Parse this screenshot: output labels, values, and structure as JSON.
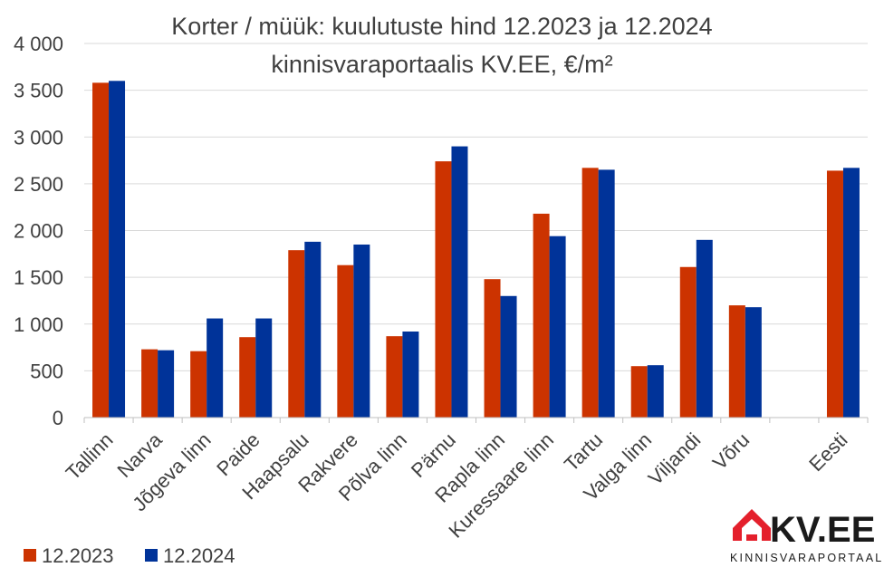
{
  "chart_data": {
    "type": "bar",
    "title_line1": "Korter / müük: kuulutuste hind 12.2023 ja 12.2024",
    "title_line2": "kinnisvaraportaalis KV.EE, €/m²",
    "categories": [
      "Tallinn",
      "Narva",
      "Jõgeva linn",
      "Paide",
      "Haapsalu",
      "Rakvere",
      "Põlva linn",
      "Pärnu",
      "Rapla linn",
      "Kuressaare linn",
      "Tartu",
      "Valga linn",
      "Viljandi",
      "Võru",
      "",
      "Eesti"
    ],
    "series": [
      {
        "name": "12.2023",
        "color": "#CC3300",
        "values": [
          3580,
          730,
          710,
          860,
          1790,
          1630,
          870,
          2740,
          1480,
          2180,
          2670,
          550,
          1610,
          1200,
          null,
          2640
        ]
      },
      {
        "name": "12.2024",
        "color": "#003399",
        "values": [
          3600,
          720,
          1060,
          1060,
          1880,
          1850,
          920,
          2900,
          1300,
          1940,
          2650,
          560,
          1900,
          1180,
          null,
          2670
        ]
      }
    ],
    "ylim": [
      0,
      4000
    ],
    "yticks": [
      0,
      500,
      1000,
      1500,
      2000,
      2500,
      3000,
      3500,
      4000
    ],
    "ytick_labels": [
      "0",
      "500",
      "1 000",
      "1 500",
      "2 000",
      "2 500",
      "3 000",
      "3 500",
      "4 000"
    ],
    "grid": true,
    "legend_position": "bottom-left"
  },
  "logo": {
    "name": "KV.EE",
    "text": "KV.EE",
    "subtitle": "KINNISVARAPORTAAL",
    "house_icon": "house-icon",
    "accent_color": "#E4202C"
  }
}
